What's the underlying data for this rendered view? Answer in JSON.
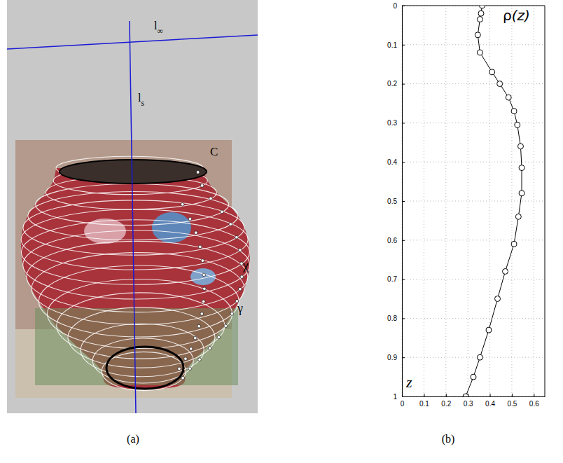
{
  "chart_data": {
    "type": "line",
    "title": "ρ(z)",
    "ylabel": "z",
    "caption": "(b)",
    "x": [
      0.365,
      0.36,
      0.355,
      0.345,
      0.355,
      0.41,
      0.445,
      0.485,
      0.51,
      0.525,
      0.54,
      0.545,
      0.545,
      0.53,
      0.51,
      0.47,
      0.435,
      0.395,
      0.355,
      0.325,
      0.29
    ],
    "values": [
      0,
      0.02,
      0.035,
      0.075,
      0.12,
      0.17,
      0.2,
      0.235,
      0.27,
      0.305,
      0.36,
      0.415,
      0.48,
      0.54,
      0.61,
      0.68,
      0.75,
      0.83,
      0.9,
      0.95,
      1
    ],
    "xlim": [
      0,
      0.65
    ],
    "xticks": [
      0,
      0.1,
      0.2,
      0.3,
      0.4,
      0.5,
      0.6
    ],
    "ylim": [
      1,
      0
    ],
    "yticks": [
      0,
      0.1,
      0.2,
      0.3,
      0.4,
      0.5,
      0.6,
      0.7,
      0.8,
      0.9,
      1
    ],
    "grid": true,
    "color": "#000000",
    "marker": "circle",
    "line_style": "solid"
  },
  "diagram": {
    "caption": "(a)",
    "labels": [
      {
        "text": "l",
        "sub": "∞"
      },
      {
        "text": "l",
        "sub": "s"
      },
      {
        "text": "C"
      },
      {
        "text": "χ"
      },
      {
        "text": "γ"
      }
    ]
  }
}
